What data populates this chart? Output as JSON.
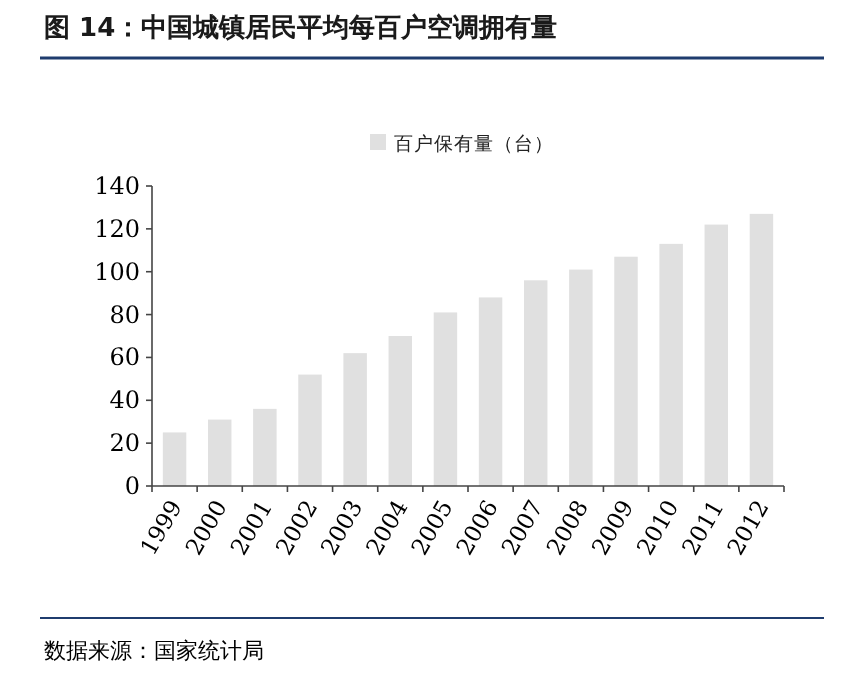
{
  "chart_data": {
    "type": "bar",
    "title": "图 14：中国城镇居民平均每百户空调拥有量",
    "categories": [
      "1999",
      "2000",
      "2001",
      "2002",
      "2003",
      "2004",
      "2005",
      "2006",
      "2007",
      "2008",
      "2009",
      "2010",
      "2011",
      "2012"
    ],
    "series": [
      {
        "name": "百户保有量（台）",
        "color": "#e0e0e0",
        "values": [
          25,
          31,
          36,
          52,
          62,
          70,
          81,
          88,
          96,
          101,
          107,
          113,
          122,
          127
        ]
      }
    ],
    "ylim": [
      0,
      140
    ],
    "yticks": [
      0,
      20,
      40,
      60,
      80,
      100,
      120,
      140
    ],
    "legend": "top",
    "annotations": [
      "数据来源：国家统计局"
    ]
  }
}
